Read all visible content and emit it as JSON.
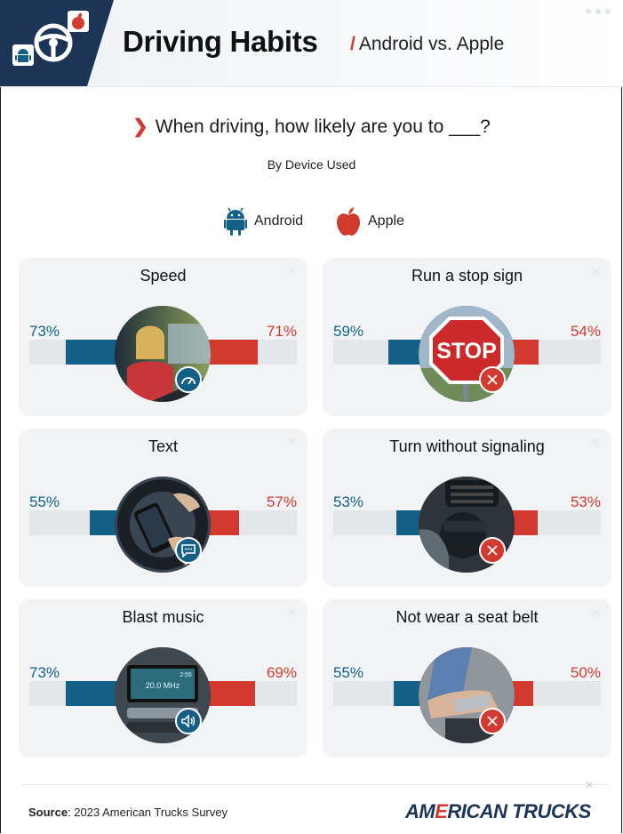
{
  "header": {
    "title": "Driving Habits",
    "subtitle": "Android vs. Apple",
    "colors": {
      "navy": "#1c3557",
      "android": "#135f86",
      "apple": "#d23a2f"
    }
  },
  "question": "When driving, how likely are you to ___?",
  "byline": "By Device Used",
  "legend": [
    {
      "label": "Android",
      "icon": "android-icon",
      "color": "#135f86"
    },
    {
      "label": "Apple",
      "icon": "apple-icon",
      "color": "#d23a2f"
    }
  ],
  "chart_data": {
    "type": "bar",
    "categories": [
      "Speed",
      "Run a stop sign",
      "Text",
      "Turn without signaling",
      "Blast music",
      "Not wear a seat belt"
    ],
    "series": [
      {
        "name": "Android",
        "values": [
          73,
          59,
          55,
          53,
          73,
          55
        ]
      },
      {
        "name": "Apple",
        "values": [
          71,
          54,
          57,
          53,
          69,
          50
        ]
      }
    ],
    "labels": {
      "android": [
        "73%",
        "59%",
        "55%",
        "53%",
        "73%",
        "55%"
      ],
      "apple": [
        "71%",
        "54%",
        "57%",
        "53%",
        "69%",
        "50%"
      ]
    },
    "ylim": [
      0,
      100
    ],
    "legend_position": "top-center",
    "photo_icons": [
      "speedometer-icon",
      "stop-sign-icon",
      "chat-icon",
      "x-icon",
      "speaker-icon",
      "x-icon"
    ]
  },
  "footer": {
    "source_label": "Source",
    "source_text": ": 2023 American Trucks Survey",
    "brand": "AMERICAN TRUCKS"
  }
}
